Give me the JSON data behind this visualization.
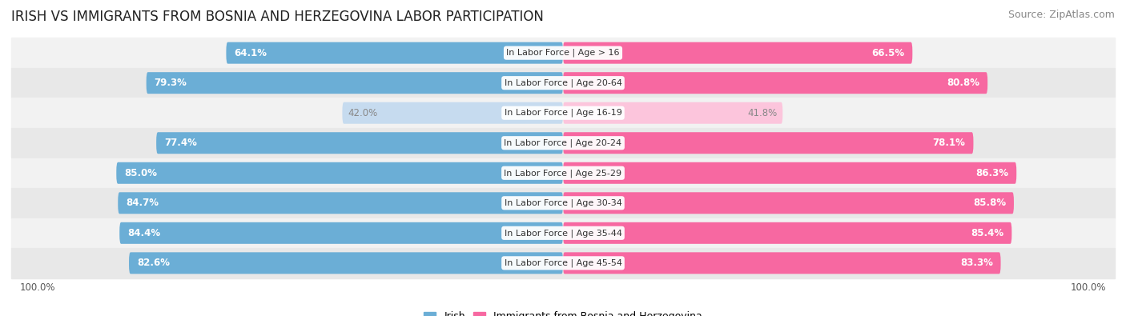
{
  "title": "IRISH VS IMMIGRANTS FROM BOSNIA AND HERZEGOVINA LABOR PARTICIPATION",
  "source": "Source: ZipAtlas.com",
  "categories": [
    "In Labor Force | Age > 16",
    "In Labor Force | Age 20-64",
    "In Labor Force | Age 16-19",
    "In Labor Force | Age 20-24",
    "In Labor Force | Age 25-29",
    "In Labor Force | Age 30-34",
    "In Labor Force | Age 35-44",
    "In Labor Force | Age 45-54"
  ],
  "irish_values": [
    64.1,
    79.3,
    42.0,
    77.4,
    85.0,
    84.7,
    84.4,
    82.6
  ],
  "immigrant_values": [
    66.5,
    80.8,
    41.8,
    78.1,
    86.3,
    85.8,
    85.4,
    83.3
  ],
  "irish_color": "#6baed6",
  "irish_color_light": "#c6dbef",
  "immigrant_color": "#f768a1",
  "immigrant_color_light": "#fcc5dc",
  "row_bg_even": "#f2f2f2",
  "row_bg_odd": "#e8e8e8",
  "max_value": 100.0,
  "legend_irish": "Irish",
  "legend_immigrant": "Immigrants from Bosnia and Herzegovina",
  "title_fontsize": 12,
  "source_fontsize": 9,
  "label_fontsize": 8.5,
  "category_fontsize": 8.0,
  "bar_height": 0.72,
  "figsize": [
    14.06,
    3.95
  ]
}
